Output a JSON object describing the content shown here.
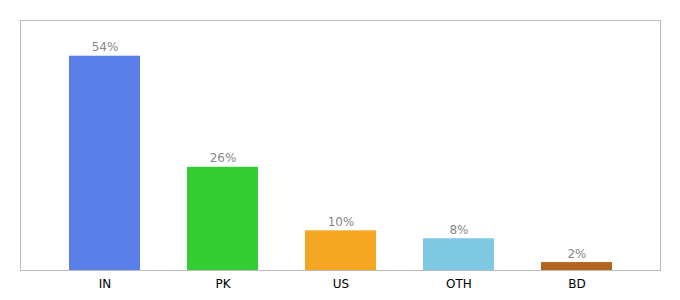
{
  "chart_data": {
    "type": "bar",
    "categories": [
      "IN",
      "PK",
      "US",
      "OTH",
      "BD"
    ],
    "values": [
      54,
      26,
      10,
      8,
      2
    ],
    "value_labels": [
      "54%",
      "26%",
      "10%",
      "8%",
      "2%"
    ],
    "colors": [
      "#5b7fe8",
      "#33cc33",
      "#f5a623",
      "#7ec8e3",
      "#b5651d"
    ],
    "ylim": [
      0,
      63
    ],
    "data_labels": true,
    "tick_labels": "x"
  }
}
